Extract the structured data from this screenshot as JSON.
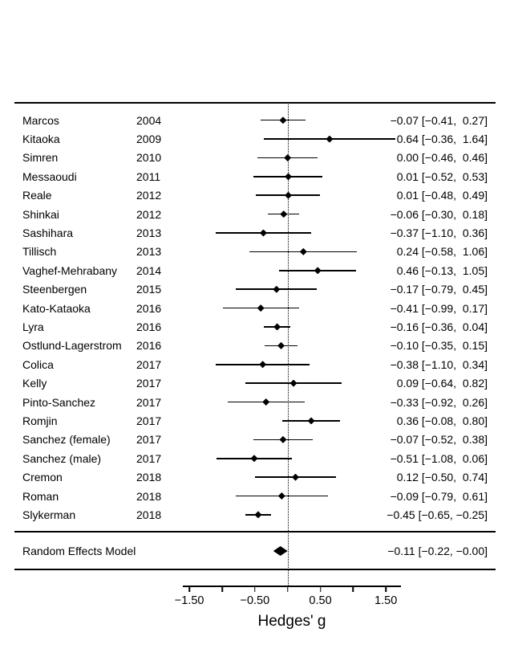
{
  "chart_data": {
    "type": "forest",
    "title": "",
    "xlabel": "Hedges' g",
    "xlim": [
      -1.6,
      1.73
    ],
    "grid": false,
    "legend_position": "none",
    "reference_line": 0,
    "axis_ticks": [
      -1.5,
      -1.0,
      -0.5,
      0.0,
      0.5,
      1.0,
      1.5
    ],
    "axis_tick_labels": [
      {
        "value": -1.5,
        "label": "−1.50"
      },
      {
        "value": -0.5,
        "label": "−0.50"
      },
      {
        "value": 0.5,
        "label": "0.50"
      },
      {
        "value": 1.5,
        "label": "1.50"
      }
    ],
    "studies": [
      {
        "name": "Marcos",
        "year": "2004",
        "estimate": -0.07,
        "ci_low": -0.41,
        "ci_high": 0.27,
        "label": "−0.07 [−0.41,  0.27]"
      },
      {
        "name": "Kitaoka",
        "year": "2009",
        "estimate": 0.64,
        "ci_low": -0.36,
        "ci_high": 1.64,
        "label": "0.64 [−0.36,  1.64]"
      },
      {
        "name": "Simren",
        "year": "2010",
        "estimate": 0.0,
        "ci_low": -0.46,
        "ci_high": 0.46,
        "label": "0.00 [−0.46,  0.46]"
      },
      {
        "name": "Messaoudi",
        "year": "2011",
        "estimate": 0.01,
        "ci_low": -0.52,
        "ci_high": 0.53,
        "label": "0.01 [−0.52,  0.53]"
      },
      {
        "name": "Reale",
        "year": "2012",
        "estimate": 0.01,
        "ci_low": -0.48,
        "ci_high": 0.49,
        "label": "0.01 [−0.48,  0.49]"
      },
      {
        "name": "Shinkai",
        "year": "2012",
        "estimate": -0.06,
        "ci_low": -0.3,
        "ci_high": 0.18,
        "label": "−0.06 [−0.30,  0.18]"
      },
      {
        "name": "Sashihara",
        "year": "2013",
        "estimate": -0.37,
        "ci_low": -1.1,
        "ci_high": 0.36,
        "label": "−0.37 [−1.10,  0.36]"
      },
      {
        "name": "Tillisch",
        "year": "2013",
        "estimate": 0.24,
        "ci_low": -0.58,
        "ci_high": 1.06,
        "label": "0.24 [−0.58,  1.06]"
      },
      {
        "name": "Vaghef-Mehrabany",
        "year": "2014",
        "estimate": 0.46,
        "ci_low": -0.13,
        "ci_high": 1.05,
        "label": "0.46 [−0.13,  1.05]"
      },
      {
        "name": "Steenbergen",
        "year": "2015",
        "estimate": -0.17,
        "ci_low": -0.79,
        "ci_high": 0.45,
        "label": "−0.17 [−0.79,  0.45]"
      },
      {
        "name": "Kato-Kataoka",
        "year": "2016",
        "estimate": -0.41,
        "ci_low": -0.99,
        "ci_high": 0.17,
        "label": "−0.41 [−0.99,  0.17]"
      },
      {
        "name": "Lyra",
        "year": "2016",
        "estimate": -0.16,
        "ci_low": -0.36,
        "ci_high": 0.04,
        "label": "−0.16 [−0.36,  0.04]"
      },
      {
        "name": "Ostlund-Lagerstrom",
        "year": "2016",
        "estimate": -0.1,
        "ci_low": -0.35,
        "ci_high": 0.15,
        "label": "−0.10 [−0.35,  0.15]"
      },
      {
        "name": "Colica",
        "year": "2017",
        "estimate": -0.38,
        "ci_low": -1.1,
        "ci_high": 0.34,
        "label": "−0.38 [−1.10,  0.34]"
      },
      {
        "name": "Kelly",
        "year": "2017",
        "estimate": 0.09,
        "ci_low": -0.64,
        "ci_high": 0.82,
        "label": "0.09 [−0.64,  0.82]"
      },
      {
        "name": "Pinto-Sanchez",
        "year": "2017",
        "estimate": -0.33,
        "ci_low": -0.92,
        "ci_high": 0.26,
        "label": "−0.33 [−0.92,  0.26]"
      },
      {
        "name": "Romjin",
        "year": "2017",
        "estimate": 0.36,
        "ci_low": -0.08,
        "ci_high": 0.8,
        "label": "0.36 [−0.08,  0.80]"
      },
      {
        "name": "Sanchez (female)",
        "year": "2017",
        "estimate": -0.07,
        "ci_low": -0.52,
        "ci_high": 0.38,
        "label": "−0.07 [−0.52,  0.38]"
      },
      {
        "name": "Sanchez (male)",
        "year": "2017",
        "estimate": -0.51,
        "ci_low": -1.08,
        "ci_high": 0.06,
        "label": "−0.51 [−1.08,  0.06]"
      },
      {
        "name": "Cremon",
        "year": "2018",
        "estimate": 0.12,
        "ci_low": -0.5,
        "ci_high": 0.74,
        "label": "0.12 [−0.50,  0.74]"
      },
      {
        "name": "Roman",
        "year": "2018",
        "estimate": -0.09,
        "ci_low": -0.79,
        "ci_high": 0.61,
        "label": "−0.09 [−0.79,  0.61]"
      },
      {
        "name": "Slykerman",
        "year": "2018",
        "estimate": -0.45,
        "ci_low": -0.65,
        "ci_high": -0.25,
        "label": "−0.45 [−0.65, −0.25]"
      }
    ],
    "summary": {
      "name": "Random Effects Model",
      "estimate": -0.11,
      "ci_low": -0.22,
      "ci_high": 0.0,
      "label": "−0.11 [−0.22, −0.00]"
    }
  },
  "colors": {
    "foreground": "#000000",
    "background": "#ffffff"
  }
}
